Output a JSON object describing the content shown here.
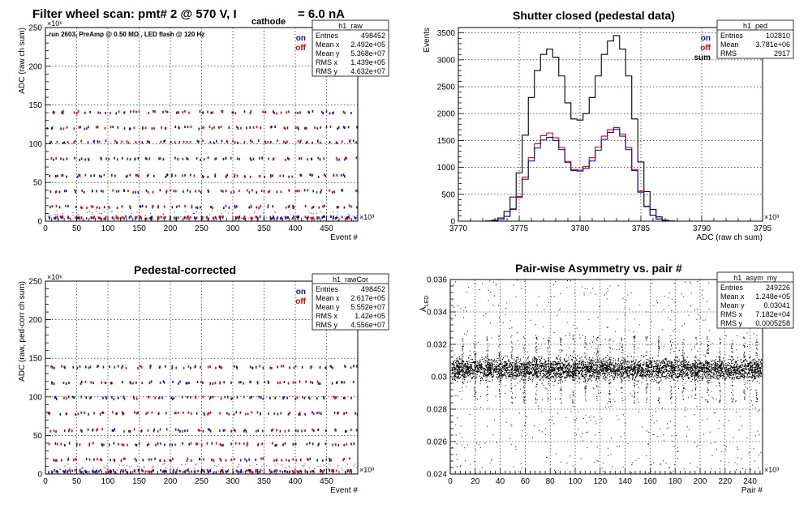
{
  "page": {
    "title_main": "Filter wheel scan: pmt#   2 @   570 V, I",
    "title_sub": "cathode",
    "title_tail": "= 6.0 nA"
  },
  "panels": [
    {
      "id": "raw",
      "title": "",
      "annotation": "run 2603, PreAmp @ 0.50 MΩ , LED flash @  120 Hz",
      "ylabel": "ADC (raw ch sum)",
      "xlabel": "Event #",
      "yexp": "×10⁶",
      "xexp": "×10³",
      "legend": [
        {
          "label": "on",
          "color": "#1010c0"
        },
        {
          "label": "off",
          "color": "#e00000"
        }
      ],
      "stats": {
        "name": "h1_raw",
        "rows": [
          [
            "Entries",
            "498452"
          ],
          [
            "Mean x",
            "2.492e+05"
          ],
          [
            "Mean y",
            "5.368e+07"
          ],
          [
            "RMS x",
            "1.439e+05"
          ],
          [
            "RMS y",
            "4.632e+07"
          ]
        ]
      }
    },
    {
      "id": "ped",
      "title": "Shutter closed (pedestal data)",
      "annotation": "",
      "ylabel": "Events",
      "xlabel": "ADC (raw ch sum)",
      "yexp": "",
      "xexp": "×10³",
      "legend": [
        {
          "label": "on",
          "color": "#1010c0"
        },
        {
          "label": "off",
          "color": "#e00000"
        },
        {
          "label": "sum",
          "color": "#000000"
        }
      ],
      "stats": {
        "name": "h1_ped",
        "rows": [
          [
            "Entries",
            "102810"
          ],
          [
            "Mean",
            "3.781e+06"
          ],
          [
            "RMS",
            "2917"
          ]
        ]
      }
    },
    {
      "id": "cor",
      "title": "Pedestal-corrected",
      "annotation": "",
      "ylabel": "ADC (raw, ped-corr ch sum)",
      "xlabel": "Event #",
      "yexp": "×10⁶",
      "xexp": "×10³",
      "legend": [
        {
          "label": "on",
          "color": "#1010c0"
        },
        {
          "label": "off",
          "color": "#e00000"
        }
      ],
      "stats": {
        "name": "h1_rawCor",
        "rows": [
          [
            "Entries",
            "498452"
          ],
          [
            "Mean x",
            "2.617e+05"
          ],
          [
            "Mean y",
            "5.552e+07"
          ],
          [
            "RMS x",
            "1.42e+05"
          ],
          [
            "RMS y",
            "4.556e+07"
          ]
        ]
      }
    },
    {
      "id": "asym",
      "title": "Pair-wise Asymmetry vs. pair #",
      "annotation": "",
      "ylabel": "A_LED",
      "xlabel": "Pair #",
      "yexp": "",
      "xexp": "×10³",
      "legend": [],
      "stats": {
        "name": "h1_asym_my",
        "rows": [
          [
            "Entries",
            "249226"
          ],
          [
            "Mean x",
            "1.248e+05"
          ],
          [
            "Mean y",
            "0.03041"
          ],
          [
            "RMS x",
            "7.182e+04"
          ],
          [
            "RMS y",
            "0.0005258"
          ]
        ]
      }
    }
  ],
  "chart_data": [
    {
      "type": "scatter",
      "title": "",
      "xlabel": "Event #",
      "ylabel": "ADC (raw ch sum)",
      "xlim": [
        0,
        500
      ],
      "ylim": [
        0,
        250
      ],
      "xticks": [
        0,
        50,
        100,
        150,
        200,
        250,
        300,
        350,
        400,
        450
      ],
      "yticks": [
        0,
        50,
        100,
        150,
        200,
        250
      ],
      "grid": true,
      "legend_position": "top-right",
      "series": [
        {
          "name": "on",
          "color": "#1010c0"
        },
        {
          "name": "off",
          "color": "#e00000"
        }
      ],
      "level_groups_y": [
        4,
        18,
        38,
        58,
        80,
        102,
        120,
        140
      ],
      "step_period_x": 19.6
    },
    {
      "type": "line",
      "title": "Shutter closed (pedestal data)",
      "xlabel": "ADC (raw ch sum)",
      "ylabel": "Events",
      "xlim": [
        3770,
        3795
      ],
      "ylim": [
        0,
        3600
      ],
      "xticks": [
        3770,
        3775,
        3780,
        3785,
        3790,
        3795
      ],
      "yticks": [
        0,
        500,
        1000,
        1500,
        2000,
        2500,
        3000,
        3500
      ],
      "grid": true,
      "legend_position": "top-right",
      "x": [
        3772.5,
        3773.0,
        3773.5,
        3774.0,
        3774.5,
        3775.0,
        3775.5,
        3776.0,
        3776.5,
        3777.0,
        3777.5,
        3778.0,
        3778.5,
        3779.0,
        3779.5,
        3780.0,
        3780.5,
        3781.0,
        3781.5,
        3782.0,
        3782.5,
        3783.0,
        3783.5,
        3784.0,
        3784.5,
        3785.0,
        3785.5,
        3786.0,
        3786.5,
        3787.0,
        3787.5
      ],
      "series": [
        {
          "name": "sum",
          "color": "#000000",
          "values": [
            5,
            20,
            60,
            180,
            450,
            900,
            1600,
            2300,
            2800,
            3100,
            3200,
            3050,
            2700,
            2200,
            1900,
            1880,
            2000,
            2300,
            2700,
            3100,
            3350,
            3450,
            3200,
            2700,
            1900,
            1100,
            550,
            220,
            80,
            20,
            5
          ]
        },
        {
          "name": "off",
          "color": "#e00000",
          "values": [
            3,
            10,
            30,
            90,
            230,
            460,
            820,
            1180,
            1440,
            1590,
            1640,
            1550,
            1370,
            1110,
            960,
            950,
            1020,
            1180,
            1380,
            1580,
            1700,
            1740,
            1620,
            1370,
            960,
            560,
            280,
            110,
            40,
            10,
            3
          ]
        },
        {
          "name": "on",
          "color": "#1010c0",
          "values": [
            2,
            10,
            30,
            90,
            220,
            440,
            780,
            1120,
            1360,
            1510,
            1560,
            1500,
            1330,
            1090,
            940,
            930,
            980,
            1120,
            1320,
            1520,
            1650,
            1710,
            1580,
            1330,
            940,
            540,
            270,
            110,
            40,
            10,
            2
          ]
        }
      ]
    },
    {
      "type": "scatter",
      "title": "Pedestal-corrected",
      "xlabel": "Event #",
      "ylabel": "ADC (raw, ped-corr ch sum)",
      "xlim": [
        0,
        500
      ],
      "ylim": [
        0,
        250
      ],
      "xticks": [
        0,
        50,
        100,
        150,
        200,
        250,
        300,
        350,
        400,
        450
      ],
      "yticks": [
        0,
        50,
        100,
        150,
        200,
        250
      ],
      "grid": true,
      "legend_position": "top-right",
      "series": [
        {
          "name": "on",
          "color": "#1010c0"
        },
        {
          "name": "off",
          "color": "#e00000"
        }
      ],
      "level_groups_y": [
        3,
        18,
        38,
        56,
        78,
        98,
        118,
        138
      ],
      "step_period_x": 19.6
    },
    {
      "type": "scatter",
      "title": "Pair-wise Asymmetry vs. pair #",
      "xlabel": "Pair #",
      "ylabel": "A_LED",
      "xlim": [
        0,
        250
      ],
      "ylim": [
        0.024,
        0.036
      ],
      "xticks": [
        0,
        20,
        40,
        60,
        80,
        100,
        120,
        140,
        160,
        180,
        200,
        220,
        240
      ],
      "yticks": [
        0.024,
        0.026,
        0.028,
        0.03,
        0.032,
        0.034,
        0.036
      ],
      "grid": true,
      "band_center": 0.0305,
      "band_halfwidth": 0.0007,
      "spike_period_x": 9.8
    }
  ]
}
